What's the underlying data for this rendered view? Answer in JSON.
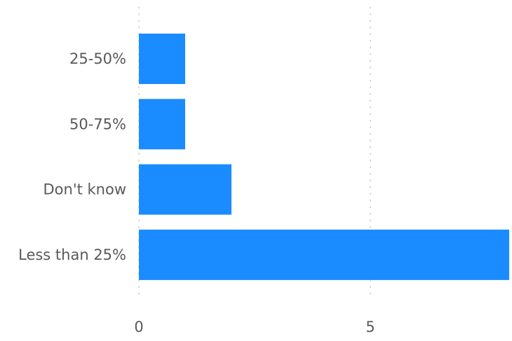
{
  "chart_data": {
    "type": "bar",
    "orientation": "horizontal",
    "categories": [
      "25-50%",
      "50-75%",
      "Don't know",
      "Less than 25%"
    ],
    "values": [
      1,
      1,
      2,
      8
    ],
    "xlim": [
      0,
      8
    ],
    "x_ticks": [
      0,
      5
    ],
    "x_tick_labels": [
      "0",
      "5"
    ],
    "grid": "vertical dotted",
    "legend": "none",
    "bar_color": "#1a8cff",
    "grid_color": "#cccccc",
    "label_color": "#595959"
  }
}
